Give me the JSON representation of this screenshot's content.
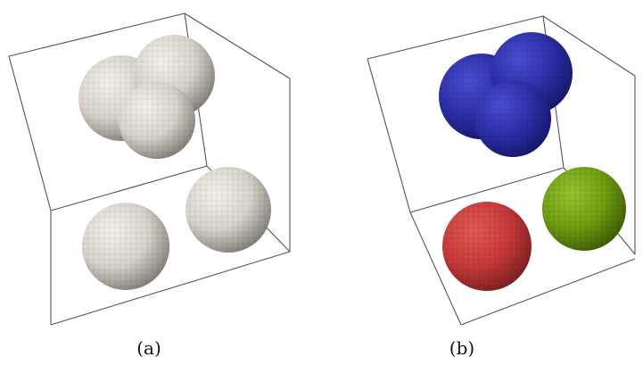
{
  "figure": {
    "panels": [
      {
        "id": "a",
        "label": "(a)",
        "coloring": "uniform",
        "colors": {
          "all": "#d8d4cc"
        }
      },
      {
        "id": "b",
        "label": "(b)",
        "coloring": "by-cluster",
        "colors": {
          "merged_cluster": "#2b2fa6",
          "sphere_left": "#c83a3a",
          "sphere_right": "#6f9e10"
        }
      }
    ],
    "style": {
      "edge_color": "#555555",
      "background": "#ffffff"
    }
  }
}
